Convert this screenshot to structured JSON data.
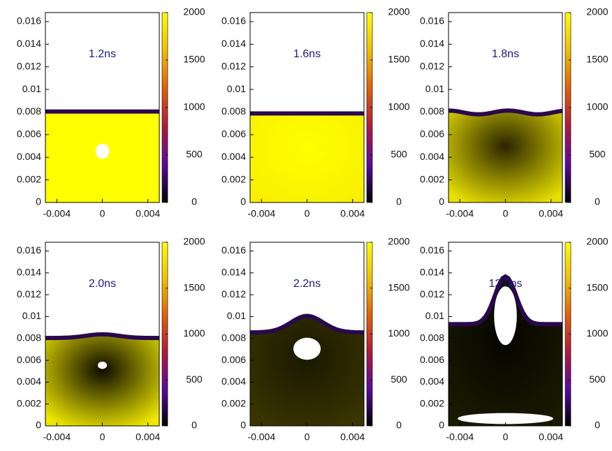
{
  "chart_data": [
    {
      "type": "heatmap",
      "annotation": "1.2ns",
      "xlim": [
        -0.005,
        0.005
      ],
      "ylim": [
        0,
        0.0168
      ],
      "xticks": [
        -0.004,
        0,
        0.004
      ],
      "yticks": [
        0,
        0.002,
        0.004,
        0.006,
        0.008,
        0.01,
        0.012,
        0.014,
        0.016
      ],
      "clim": [
        0,
        2000
      ],
      "cticks": [
        0,
        500,
        1000,
        1500,
        2000
      ],
      "colormap": [
        "#000000",
        "#5a0aa0",
        "#b01a3c",
        "#e0600a",
        "#f0c000",
        "#ffff00"
      ]
    },
    {
      "type": "heatmap",
      "annotation": "1.6ns",
      "xlim": [
        -0.005,
        0.005
      ],
      "ylim": [
        0,
        0.0168
      ],
      "xticks": [
        -0.004,
        0,
        0.004
      ],
      "yticks": [
        0,
        0.002,
        0.004,
        0.006,
        0.008,
        0.01,
        0.012,
        0.014,
        0.016
      ],
      "clim": [
        0,
        2000
      ],
      "cticks": [
        0,
        500,
        1000,
        1500,
        2000
      ],
      "colormap": [
        "#000000",
        "#5a0aa0",
        "#b01a3c",
        "#e0600a",
        "#f0c000",
        "#ffff00"
      ]
    },
    {
      "type": "heatmap",
      "annotation": "1.8ns",
      "xlim": [
        -0.005,
        0.005
      ],
      "ylim": [
        0,
        0.0168
      ],
      "xticks": [
        -0.004,
        0,
        0.004
      ],
      "yticks": [
        0,
        0.002,
        0.004,
        0.006,
        0.008,
        0.01,
        0.012,
        0.014,
        0.016
      ],
      "clim": [
        0,
        2000
      ],
      "cticks": [
        0,
        500,
        1000,
        1500,
        2000
      ],
      "colormap": [
        "#000000",
        "#5a0aa0",
        "#b01a3c",
        "#e0600a",
        "#f0c000",
        "#ffff00"
      ]
    },
    {
      "type": "heatmap",
      "annotation": "2.0ns",
      "xlim": [
        -0.005,
        0.005
      ],
      "ylim": [
        0,
        0.0168
      ],
      "xticks": [
        -0.004,
        0,
        0.004
      ],
      "yticks": [
        0,
        0.002,
        0.004,
        0.006,
        0.008,
        0.01,
        0.012,
        0.014,
        0.016
      ],
      "clim": [
        0,
        2000
      ],
      "cticks": [
        0,
        500,
        1000,
        1500,
        2000
      ],
      "colormap": [
        "#000000",
        "#5a0aa0",
        "#b01a3c",
        "#e0600a",
        "#f0c000",
        "#ffff00"
      ]
    },
    {
      "type": "heatmap",
      "annotation": "2.2ns",
      "xlim": [
        -0.005,
        0.005
      ],
      "ylim": [
        0,
        0.0168
      ],
      "xticks": [
        -0.004,
        0,
        0.004
      ],
      "yticks": [
        0,
        0.002,
        0.004,
        0.006,
        0.008,
        0.01,
        0.012,
        0.014,
        0.016
      ],
      "clim": [
        0,
        2000
      ],
      "cticks": [
        0,
        500,
        1000,
        1500,
        2000
      ],
      "colormap": [
        "#000000",
        "#5a0aa0",
        "#b01a3c",
        "#e0600a",
        "#f0c000",
        "#ffff00"
      ]
    },
    {
      "type": "heatmap",
      "annotation": "12.0ns",
      "xlim": [
        -0.005,
        0.005
      ],
      "ylim": [
        0,
        0.0168
      ],
      "xticks": [
        -0.004,
        0,
        0.004
      ],
      "yticks": [
        0,
        0.002,
        0.004,
        0.006,
        0.008,
        0.01,
        0.012,
        0.014,
        0.016
      ],
      "clim": [
        0,
        2000
      ],
      "cticks": [
        0,
        500,
        1000,
        1500,
        2000
      ],
      "colormap": [
        "#000000",
        "#5a0aa0",
        "#b01a3c",
        "#e0600a",
        "#f0c000",
        "#ffff00"
      ]
    }
  ]
}
